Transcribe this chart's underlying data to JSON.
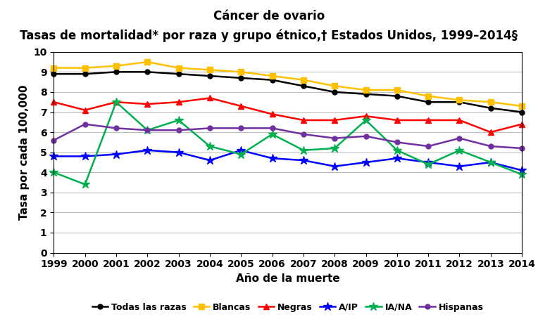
{
  "title_line1": "Cáncer de ovario",
  "title_line2": "Tasas de mortalidad* por raza y grupo étnico,† Estados Unidos, 1999–2014§",
  "xlabel": "Año de la muerte",
  "ylabel": "Tasa por cada 100,000",
  "years": [
    1999,
    2000,
    2001,
    2002,
    2003,
    2004,
    2005,
    2006,
    2007,
    2008,
    2009,
    2010,
    2011,
    2012,
    2013,
    2014
  ],
  "series": {
    "Todas las razas": {
      "values": [
        8.9,
        8.9,
        9.0,
        9.0,
        8.9,
        8.8,
        8.7,
        8.6,
        8.3,
        8.0,
        7.9,
        7.8,
        7.5,
        7.5,
        7.2,
        7.0
      ],
      "color": "#000000",
      "marker": "o",
      "linewidth": 1.8,
      "markersize": 5
    },
    "Blancas": {
      "values": [
        9.2,
        9.2,
        9.3,
        9.5,
        9.2,
        9.1,
        9.0,
        8.8,
        8.6,
        8.3,
        8.1,
        8.1,
        7.8,
        7.6,
        7.5,
        7.3
      ],
      "color": "#FFC000",
      "marker": "s",
      "linewidth": 1.8,
      "markersize": 6
    },
    "Negras": {
      "values": [
        7.5,
        7.1,
        7.5,
        7.4,
        7.5,
        7.7,
        7.3,
        6.9,
        6.6,
        6.6,
        6.8,
        6.6,
        6.6,
        6.6,
        6.0,
        6.4
      ],
      "color": "#FF0000",
      "marker": "^",
      "linewidth": 1.8,
      "markersize": 6
    },
    "A/IP": {
      "values": [
        4.8,
        4.8,
        4.9,
        5.1,
        5.0,
        4.6,
        5.1,
        4.7,
        4.6,
        4.3,
        4.5,
        4.7,
        4.5,
        4.3,
        4.5,
        4.1
      ],
      "color": "#0000FF",
      "marker": "*",
      "linewidth": 1.8,
      "markersize": 9
    },
    "IA/NA": {
      "values": [
        4.0,
        3.4,
        7.5,
        6.1,
        6.6,
        5.3,
        4.9,
        5.9,
        5.1,
        5.2,
        6.6,
        5.1,
        4.4,
        5.1,
        4.5,
        3.9
      ],
      "color": "#00B050",
      "marker": "*",
      "linewidth": 1.8,
      "markersize": 9
    },
    "Hispanas": {
      "values": [
        5.6,
        6.4,
        6.2,
        6.1,
        6.1,
        6.2,
        6.2,
        6.2,
        5.9,
        5.7,
        5.8,
        5.5,
        5.3,
        5.7,
        5.3,
        5.2
      ],
      "color": "#7030A0",
      "marker": "o",
      "linewidth": 1.8,
      "markersize": 5
    }
  },
  "ylim": [
    0,
    10
  ],
  "yticks": [
    0,
    1,
    2,
    3,
    4,
    5,
    6,
    7,
    8,
    9,
    10
  ],
  "legend_order": [
    "Todas las razas",
    "Blancas",
    "Negras",
    "A/IP",
    "IA/NA",
    "Hispanas"
  ],
  "background_color": "#FFFFFF",
  "grid_color": "#BBBBBB",
  "title_fontsize": 12,
  "subtitle_fontsize": 12,
  "axis_label_fontsize": 11,
  "tick_fontsize": 10,
  "legend_fontsize": 9
}
